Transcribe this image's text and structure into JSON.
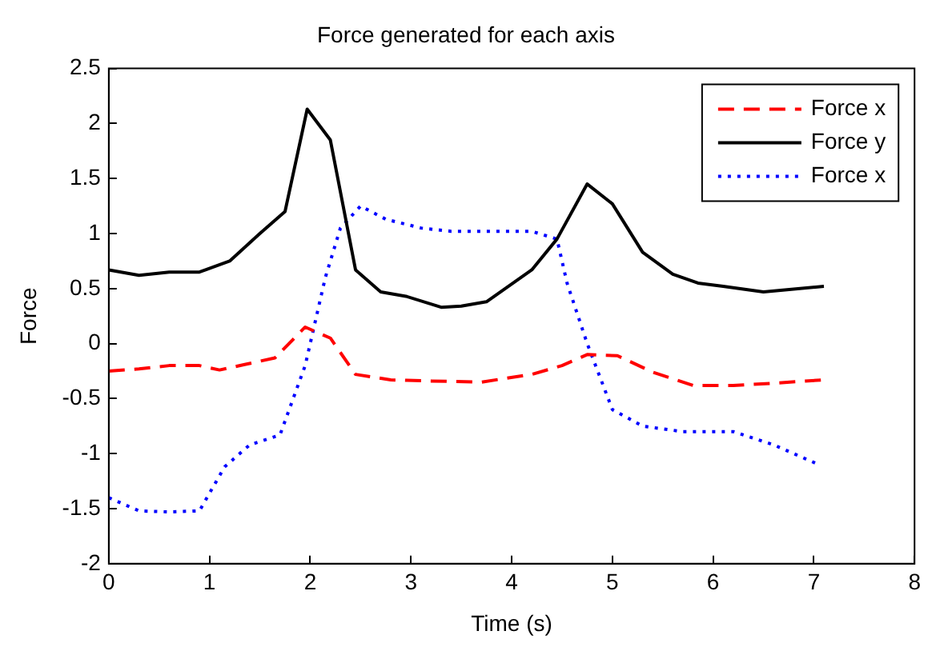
{
  "chart_data": {
    "type": "line",
    "title": "Force generated for each axis",
    "xlabel": "Time (s)",
    "ylabel": "Force",
    "xlim": [
      0,
      8
    ],
    "xticks": [
      0,
      1,
      2,
      3,
      4,
      5,
      6,
      7,
      8
    ],
    "ylim": [
      -2,
      2.5
    ],
    "yticks": [
      -2,
      -1.5,
      -1,
      -0.5,
      0,
      0.5,
      1,
      1.5,
      2,
      2.5
    ],
    "grid": false,
    "legend": "top right",
    "marker": "none",
    "series": [
      {
        "name": "Force x",
        "color": "#ff0000",
        "line_style": "dashed",
        "x": [
          0,
          0.3,
          0.6,
          0.9,
          1.1,
          1.35,
          1.65,
          1.95,
          2.2,
          2.45,
          2.8,
          3.2,
          3.7,
          4.2,
          4.5,
          4.75,
          5.05,
          5.4,
          5.8,
          6.2,
          6.6,
          7.1
        ],
        "values": [
          -0.25,
          -0.23,
          -0.2,
          -0.2,
          -0.24,
          -0.19,
          -0.13,
          0.15,
          0.05,
          -0.28,
          -0.33,
          -0.34,
          -0.35,
          -0.28,
          -0.2,
          -0.1,
          -0.11,
          -0.26,
          -0.38,
          -0.38,
          -0.36,
          -0.33
        ]
      },
      {
        "name": "Force y",
        "color": "#000000",
        "line_style": "solid",
        "x": [
          0,
          0.3,
          0.6,
          0.9,
          1.2,
          1.5,
          1.75,
          1.97,
          2.2,
          2.45,
          2.7,
          2.95,
          3.3,
          3.5,
          3.75,
          4.2,
          4.45,
          4.75,
          5.0,
          5.3,
          5.6,
          5.85,
          6.1,
          6.5,
          7.1
        ],
        "values": [
          0.67,
          0.62,
          0.65,
          0.65,
          0.75,
          1.0,
          1.2,
          2.13,
          1.85,
          0.67,
          0.47,
          0.43,
          0.33,
          0.34,
          0.38,
          0.67,
          0.95,
          1.45,
          1.27,
          0.83,
          0.63,
          0.55,
          0.52,
          0.47,
          0.52
        ]
      },
      {
        "name": "Force x",
        "color": "#0000ff",
        "line_style": "dotted",
        "x": [
          0,
          0.3,
          0.6,
          0.9,
          1.15,
          1.4,
          1.7,
          1.95,
          2.15,
          2.3,
          2.5,
          2.75,
          3.1,
          3.4,
          3.8,
          4.2,
          4.45,
          4.55,
          4.75,
          5.0,
          5.3,
          5.7,
          6.2,
          6.6,
          7.05
        ],
        "values": [
          -1.4,
          -1.52,
          -1.53,
          -1.52,
          -1.12,
          -0.92,
          -0.83,
          -0.2,
          0.6,
          1.05,
          1.25,
          1.13,
          1.05,
          1.02,
          1.02,
          1.02,
          0.95,
          0.55,
          0.0,
          -0.6,
          -0.75,
          -0.8,
          -0.8,
          -0.92,
          -1.1
        ]
      }
    ]
  }
}
